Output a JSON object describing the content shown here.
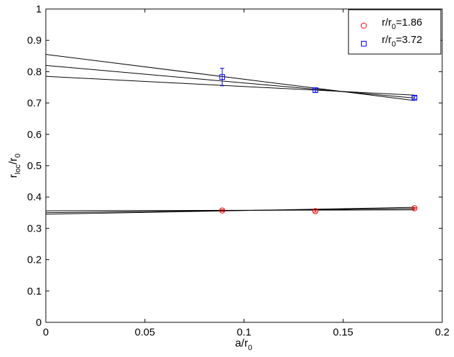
{
  "chart_data": {
    "type": "scatter",
    "xlabel": {
      "main": "a/r",
      "sub": "0"
    },
    "ylabel": {
      "base": "r",
      "sub1": "loc",
      "mid": "/r",
      "sub2": "0"
    },
    "xlim": [
      0,
      0.2
    ],
    "ylim": [
      0,
      1
    ],
    "xticks": [
      0,
      0.05,
      0.1,
      0.15,
      0.2
    ],
    "xtick_labels": [
      "0",
      "0.05",
      "0.1",
      "0.15",
      "0.2"
    ],
    "yticks": [
      0,
      0.1,
      0.2,
      0.3,
      0.4,
      0.5,
      0.6,
      0.7,
      0.8,
      0.9,
      1
    ],
    "ytick_labels": [
      "0",
      "0.1",
      "0.2",
      "0.3",
      "0.4",
      "0.5",
      "0.6",
      "0.7",
      "0.8",
      "0.9",
      "1"
    ],
    "grid": false,
    "legend_position": "top-right",
    "series": [
      {
        "name": "r/r0=1.86",
        "legend": {
          "pre": "r/r",
          "sub": "0",
          "post": "=1.86"
        },
        "marker": "circle",
        "color": "#ff0000",
        "points": [
          {
            "x": 0.089,
            "y": 0.357,
            "err": 0.003
          },
          {
            "x": 0.136,
            "y": 0.355,
            "err": 0.003
          },
          {
            "x": 0.186,
            "y": 0.364,
            "err": 0.002
          }
        ]
      },
      {
        "name": "r/r0=3.72",
        "legend": {
          "pre": "r/r",
          "sub": "0",
          "post": "=3.72"
        },
        "marker": "square",
        "color": "#0000ff",
        "points": [
          {
            "x": 0.089,
            "y": 0.783,
            "err": 0.028
          },
          {
            "x": 0.136,
            "y": 0.741,
            "err": 0.007
          },
          {
            "x": 0.186,
            "y": 0.717,
            "err": 0.005
          }
        ]
      }
    ],
    "fit_lines": [
      {
        "x": [
          0,
          0.186
        ],
        "y": [
          0.855,
          0.708
        ]
      },
      {
        "x": [
          0,
          0.186
        ],
        "y": [
          0.82,
          0.716
        ]
      },
      {
        "x": [
          0,
          0.186
        ],
        "y": [
          0.785,
          0.725
        ]
      },
      {
        "x": [
          0,
          0.186
        ],
        "y": [
          0.356,
          0.359
        ]
      },
      {
        "x": [
          0,
          0.186
        ],
        "y": [
          0.35,
          0.363
        ]
      },
      {
        "x": [
          0,
          0.186
        ],
        "y": [
          0.345,
          0.367
        ]
      }
    ]
  }
}
